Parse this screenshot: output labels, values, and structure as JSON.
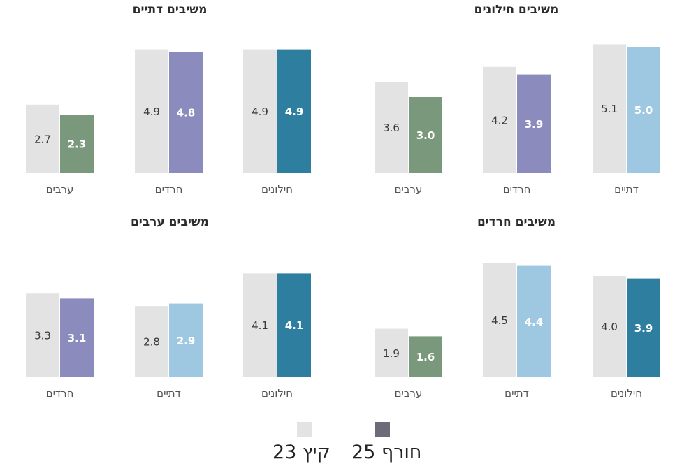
{
  "legend": {
    "summer_label": "קיץ 23",
    "winter_label": "חורף 25",
    "summer_color": "#e3e3e4",
    "winter_color": "#6d6b79"
  },
  "colors": {
    "baseline": "#c8c8c8",
    "value_text_light": "#3a3a3a",
    "value_text_dark": "#ffffff",
    "title": "#2b2b2b",
    "category_label": "#555555",
    "secular": "#2e7f9f",
    "haredi": "#8b8bbe",
    "religious": "#9ec8e2",
    "arab": "#7a997c"
  },
  "chart_data": [
    {
      "type": "bar",
      "title": "משיבים חילונים",
      "categories": [
        "דתיים",
        "חרדים",
        "ערבים"
      ],
      "series": [
        {
          "name": "קיץ 23",
          "values": [
            5.1,
            4.2,
            3.6
          ]
        },
        {
          "name": "חורף 25",
          "values": [
            5.0,
            3.9,
            3.0
          ]
        }
      ],
      "bar_colors": [
        "religious",
        "haredi",
        "arab"
      ],
      "ylim": [
        0,
        5.6
      ]
    },
    {
      "type": "bar",
      "title": "משיבים דתיים",
      "categories": [
        "חילונים",
        "חרדים",
        "ערבים"
      ],
      "series": [
        {
          "name": "קיץ 23",
          "values": [
            4.9,
            4.9,
            2.7
          ]
        },
        {
          "name": "חורף 25",
          "values": [
            4.9,
            4.8,
            2.3
          ]
        }
      ],
      "bar_colors": [
        "secular",
        "haredi",
        "arab"
      ],
      "ylim": [
        0,
        5.6
      ]
    },
    {
      "type": "bar",
      "title": "משיבים חרדים",
      "categories": [
        "חילונים",
        "דתיים",
        "ערבים"
      ],
      "series": [
        {
          "name": "קיץ 23",
          "values": [
            4.0,
            4.5,
            1.9
          ]
        },
        {
          "name": "חורף 25",
          "values": [
            3.9,
            4.4,
            1.6
          ]
        }
      ],
      "bar_colors": [
        "secular",
        "religious",
        "arab"
      ],
      "ylim": [
        0,
        5.6
      ]
    },
    {
      "type": "bar",
      "title": "משיבים ערבים",
      "categories": [
        "חילונים",
        "דתיים",
        "חרדים"
      ],
      "series": [
        {
          "name": "קיץ 23",
          "values": [
            4.1,
            2.8,
            3.3
          ]
        },
        {
          "name": "חורף 25",
          "values": [
            4.1,
            2.9,
            3.1
          ]
        }
      ],
      "bar_colors": [
        "secular",
        "religious",
        "haredi"
      ],
      "ylim": [
        0,
        5.6
      ]
    }
  ]
}
